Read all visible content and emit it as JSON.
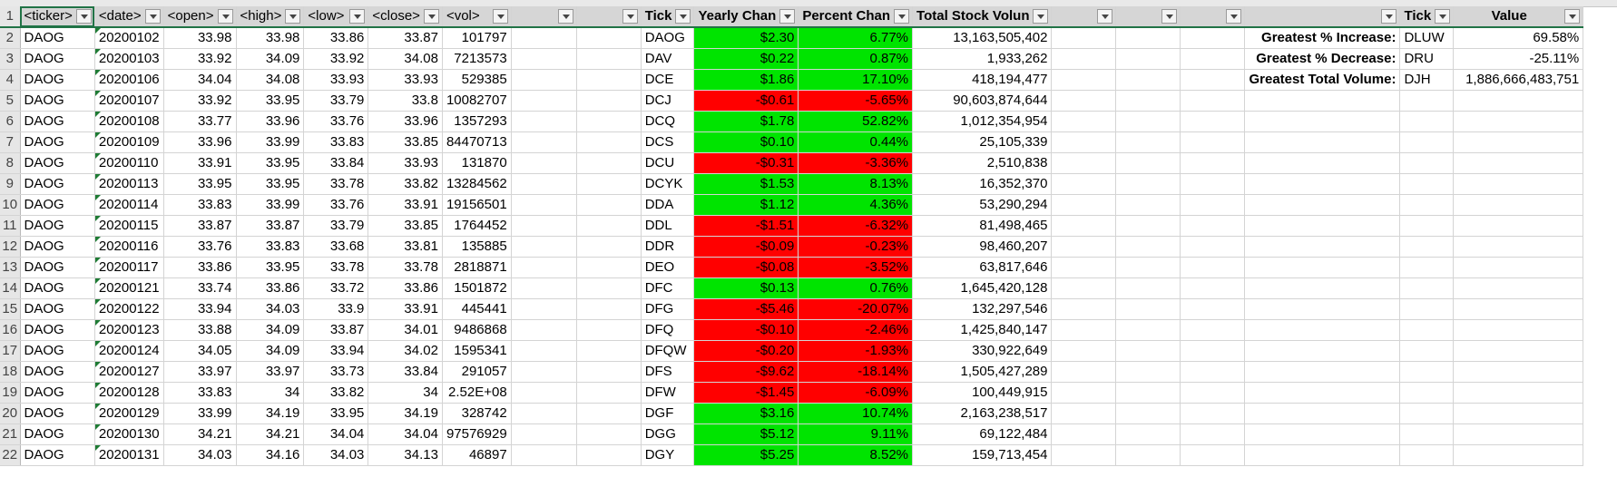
{
  "header": {
    "row_number": "1",
    "ticker": "<ticker>",
    "date": "<date>",
    "open": "<open>",
    "high": "<high>",
    "low": "<low>",
    "close": "<close>",
    "vol": "<vol>",
    "summary_ticker": "Tick",
    "yearly_change": "Yearly Chan",
    "percent_change": "Percent Chan",
    "total_volume": "Total Stock Volun",
    "greatest_ticker": "Tick",
    "greatest_value": "Value"
  },
  "rows": [
    {
      "n": "2",
      "ticker": "DAOG",
      "date": "20200102",
      "open": "33.98",
      "high": "33.98",
      "low": "33.86",
      "close": "33.87",
      "vol": "101797",
      "st": "DAOG",
      "yc": "$2.30",
      "pc": "6.77%",
      "tv": "13,163,505,402",
      "sign": "pos",
      "gl": "Greatest % Increase:",
      "gt": "DLUW",
      "gv": "69.58%"
    },
    {
      "n": "3",
      "ticker": "DAOG",
      "date": "20200103",
      "open": "33.92",
      "high": "34.09",
      "low": "33.92",
      "close": "34.08",
      "vol": "7213573",
      "st": "DAV",
      "yc": "$0.22",
      "pc": "0.87%",
      "tv": "1,933,262",
      "sign": "pos",
      "gl": "Greatest % Decrease:",
      "gt": "DRU",
      "gv": "-25.11%"
    },
    {
      "n": "4",
      "ticker": "DAOG",
      "date": "20200106",
      "open": "34.04",
      "high": "34.08",
      "low": "33.93",
      "close": "33.93",
      "vol": "529385",
      "st": "DCE",
      "yc": "$1.86",
      "pc": "17.10%",
      "tv": "418,194,477",
      "sign": "pos",
      "gl": "Greatest Total Volume:",
      "gt": "DJH",
      "gv": "1,886,666,483,751"
    },
    {
      "n": "5",
      "ticker": "DAOG",
      "date": "20200107",
      "open": "33.92",
      "high": "33.95",
      "low": "33.79",
      "close": "33.8",
      "vol": "10082707",
      "st": "DCJ",
      "yc": "-$0.61",
      "pc": "-5.65%",
      "tv": "90,603,874,644",
      "sign": "neg"
    },
    {
      "n": "6",
      "ticker": "DAOG",
      "date": "20200108",
      "open": "33.77",
      "high": "33.96",
      "low": "33.76",
      "close": "33.96",
      "vol": "1357293",
      "st": "DCQ",
      "yc": "$1.78",
      "pc": "52.82%",
      "tv": "1,012,354,954",
      "sign": "pos"
    },
    {
      "n": "7",
      "ticker": "DAOG",
      "date": "20200109",
      "open": "33.96",
      "high": "33.99",
      "low": "33.83",
      "close": "33.85",
      "vol": "84470713",
      "st": "DCS",
      "yc": "$0.10",
      "pc": "0.44%",
      "tv": "25,105,339",
      "sign": "pos"
    },
    {
      "n": "8",
      "ticker": "DAOG",
      "date": "20200110",
      "open": "33.91",
      "high": "33.95",
      "low": "33.84",
      "close": "33.93",
      "vol": "131870",
      "st": "DCU",
      "yc": "-$0.31",
      "pc": "-3.36%",
      "tv": "2,510,838",
      "sign": "neg"
    },
    {
      "n": "9",
      "ticker": "DAOG",
      "date": "20200113",
      "open": "33.95",
      "high": "33.95",
      "low": "33.78",
      "close": "33.82",
      "vol": "13284562",
      "st": "DCYK",
      "yc": "$1.53",
      "pc": "8.13%",
      "tv": "16,352,370",
      "sign": "pos"
    },
    {
      "n": "10",
      "ticker": "DAOG",
      "date": "20200114",
      "open": "33.83",
      "high": "33.99",
      "low": "33.76",
      "close": "33.91",
      "vol": "19156501",
      "st": "DDA",
      "yc": "$1.12",
      "pc": "4.36%",
      "tv": "53,290,294",
      "sign": "pos"
    },
    {
      "n": "11",
      "ticker": "DAOG",
      "date": "20200115",
      "open": "33.87",
      "high": "33.87",
      "low": "33.79",
      "close": "33.85",
      "vol": "1764452",
      "st": "DDL",
      "yc": "-$1.51",
      "pc": "-6.32%",
      "tv": "81,498,465",
      "sign": "neg"
    },
    {
      "n": "12",
      "ticker": "DAOG",
      "date": "20200116",
      "open": "33.76",
      "high": "33.83",
      "low": "33.68",
      "close": "33.81",
      "vol": "135885",
      "st": "DDR",
      "yc": "-$0.09",
      "pc": "-0.23%",
      "tv": "98,460,207",
      "sign": "neg"
    },
    {
      "n": "13",
      "ticker": "DAOG",
      "date": "20200117",
      "open": "33.86",
      "high": "33.95",
      "low": "33.78",
      "close": "33.78",
      "vol": "2818871",
      "st": "DEO",
      "yc": "-$0.08",
      "pc": "-3.52%",
      "tv": "63,817,646",
      "sign": "neg"
    },
    {
      "n": "14",
      "ticker": "DAOG",
      "date": "20200121",
      "open": "33.74",
      "high": "33.86",
      "low": "33.72",
      "close": "33.86",
      "vol": "1501872",
      "st": "DFC",
      "yc": "$0.13",
      "pc": "0.76%",
      "tv": "1,645,420,128",
      "sign": "pos"
    },
    {
      "n": "15",
      "ticker": "DAOG",
      "date": "20200122",
      "open": "33.94",
      "high": "34.03",
      "low": "33.9",
      "close": "33.91",
      "vol": "445441",
      "st": "DFG",
      "yc": "-$5.46",
      "pc": "-20.07%",
      "tv": "132,297,546",
      "sign": "neg"
    },
    {
      "n": "16",
      "ticker": "DAOG",
      "date": "20200123",
      "open": "33.88",
      "high": "34.09",
      "low": "33.87",
      "close": "34.01",
      "vol": "9486868",
      "st": "DFQ",
      "yc": "-$0.10",
      "pc": "-2.46%",
      "tv": "1,425,840,147",
      "sign": "neg"
    },
    {
      "n": "17",
      "ticker": "DAOG",
      "date": "20200124",
      "open": "34.05",
      "high": "34.09",
      "low": "33.94",
      "close": "34.02",
      "vol": "1595341",
      "st": "DFQW",
      "yc": "-$0.20",
      "pc": "-1.93%",
      "tv": "330,922,649",
      "sign": "neg"
    },
    {
      "n": "18",
      "ticker": "DAOG",
      "date": "20200127",
      "open": "33.97",
      "high": "33.97",
      "low": "33.73",
      "close": "33.84",
      "vol": "291057",
      "st": "DFS",
      "yc": "-$9.62",
      "pc": "-18.14%",
      "tv": "1,505,427,289",
      "sign": "neg"
    },
    {
      "n": "19",
      "ticker": "DAOG",
      "date": "20200128",
      "open": "33.83",
      "high": "34",
      "low": "33.82",
      "close": "34",
      "vol": "2.52E+08",
      "st": "DFW",
      "yc": "-$1.45",
      "pc": "-6.09%",
      "tv": "100,449,915",
      "sign": "neg"
    },
    {
      "n": "20",
      "ticker": "DAOG",
      "date": "20200129",
      "open": "33.99",
      "high": "34.19",
      "low": "33.95",
      "close": "34.19",
      "vol": "328742",
      "st": "DGF",
      "yc": "$3.16",
      "pc": "10.74%",
      "tv": "2,163,238,517",
      "sign": "pos"
    },
    {
      "n": "21",
      "ticker": "DAOG",
      "date": "20200130",
      "open": "34.21",
      "high": "34.21",
      "low": "34.04",
      "close": "34.04",
      "vol": "97576929",
      "st": "DGG",
      "yc": "$5.12",
      "pc": "9.11%",
      "tv": "69,122,484",
      "sign": "pos"
    },
    {
      "n": "22",
      "ticker": "DAOG",
      "date": "20200131",
      "open": "34.03",
      "high": "34.16",
      "low": "34.03",
      "close": "34.13",
      "vol": "46897",
      "st": "DGY",
      "yc": "$5.25",
      "pc": "8.52%",
      "tv": "159,713,454",
      "sign": "pos"
    }
  ],
  "colors": {
    "positive": "#00e400",
    "negative": "#ff0000",
    "header_bg": "#d6d6d6",
    "accent": "#217346"
  }
}
